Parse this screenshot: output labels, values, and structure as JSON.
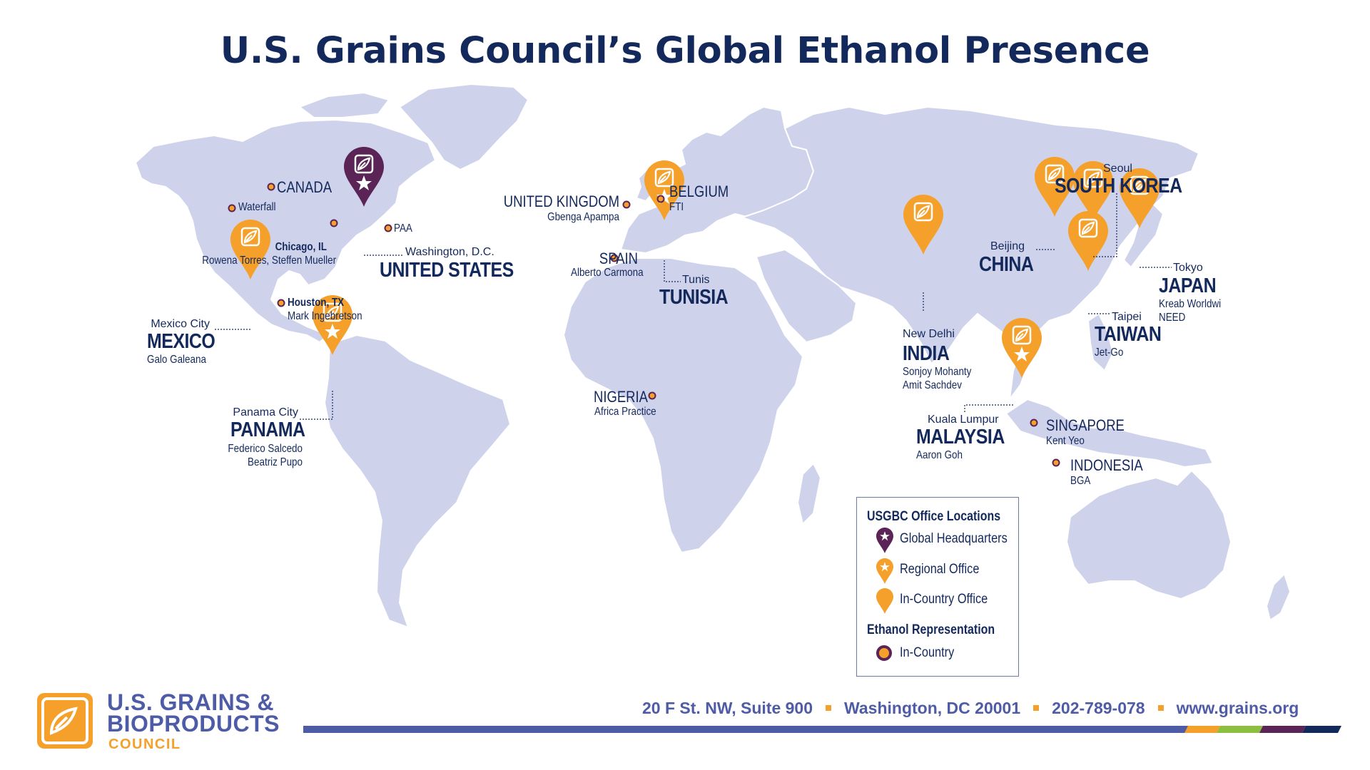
{
  "title": "U.S. Grains Council’s Global Ethanol Presence",
  "colors": {
    "land": "#cfd2eb",
    "headquarters": "#5b2456",
    "regional": "#f5a02a",
    "incountry": "#f5a02a",
    "text": "#14295b",
    "footer_bar": "#4e5ba6"
  },
  "locations": {
    "canada": {
      "country": "CANADA",
      "city": "Waterfall"
    },
    "us": {
      "city": "Washington, D.C.",
      "country": "UNITED STATES",
      "org": "PAA",
      "chicago": "Chicago, IL",
      "chicago_people": "Rowena Torres, Steffen Mueller",
      "houston": "Houston, TX",
      "houston_people": "Mark Ingebretson"
    },
    "mexico": {
      "city": "Mexico City",
      "country": "MEXICO",
      "people": "Galo Galeana"
    },
    "panama": {
      "city": "Panama City",
      "country": "PANAMA",
      "people1": "Federico Salcedo",
      "people2": "Beatriz Pupo"
    },
    "uk": {
      "country": "UNITED KINGDOM",
      "people": "Gbenga Apampa"
    },
    "belgium": {
      "country": "BELGIUM",
      "people": "FTI"
    },
    "spain": {
      "country": "SPAIN",
      "people": "Alberto Carmona"
    },
    "tunisia": {
      "city": "Tunis",
      "country": "TUNISIA"
    },
    "nigeria": {
      "country": "NIGERIA",
      "people": "Africa Practice"
    },
    "india": {
      "city": "New Delhi",
      "country": "INDIA",
      "people1": "Sonjoy Mohanty",
      "people2": "Amit Sachdev"
    },
    "china": {
      "city": "Beijing",
      "country": "CHINA"
    },
    "korea": {
      "city": "Seoul",
      "country": "SOUTH KOREA"
    },
    "japan": {
      "city": "Tokyo",
      "country": "JAPAN",
      "people1": "Kreab Worldwi",
      "people2": "NEED"
    },
    "taiwan": {
      "city": "Taipei",
      "country": "TAIWAN",
      "people": "Jet-Go"
    },
    "malaysia": {
      "city": "Kuala Lumpur",
      "country": "MALAYSIA",
      "people": "Aaron Goh"
    },
    "singapore": {
      "country": "SINGAPORE",
      "people": "Kent Yeo"
    },
    "indonesia": {
      "country": "INDONESIA",
      "people": "BGA"
    }
  },
  "legend": {
    "office_heading": "USGBC Office Locations",
    "hq": "Global Headquarters",
    "regional": "Regional Office",
    "incountry": "In-Country Office",
    "ethanol_heading": "Ethanol Representation",
    "ethanol_incountry": "In-Country"
  },
  "footer": {
    "address": "20 F St. NW, Suite 900",
    "city": "Washington, DC 20001",
    "phone": "202-789-078",
    "web": "www.grains.org",
    "logo_line1": "U.S. GRAINS &",
    "logo_line2": "BIOPRODUCTS",
    "logo_line3": "COUNCIL",
    "stripe_colors": [
      "#f5a02a",
      "#8cbe3f",
      "#5b2456",
      "#14295b"
    ]
  }
}
